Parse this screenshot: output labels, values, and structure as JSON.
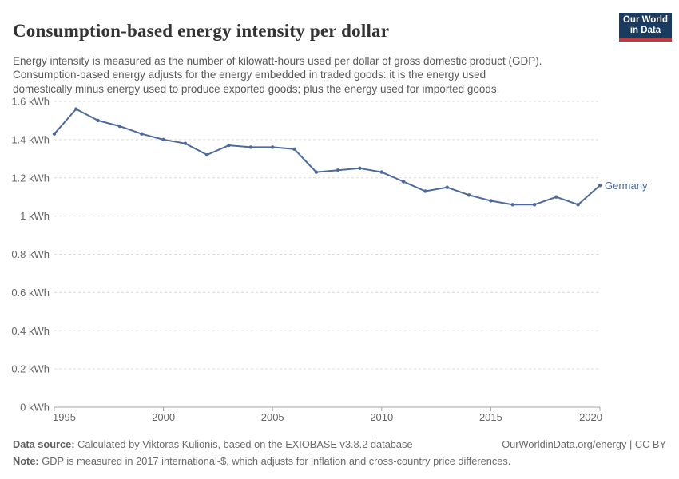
{
  "header": {
    "title": "Consumption-based energy intensity per dollar",
    "subtitle": "Energy intensity is measured as the number of kilowatt-hours used per dollar of gross domestic product (GDP).\nConsumption-based energy adjusts for the energy embedded in traded goods: it is the energy used\ndomestically minus energy used to produce exported goods; plus the energy used for imported goods.",
    "logo_text": "Our World\nin Data"
  },
  "chart_data": {
    "type": "line",
    "title": "Consumption-based energy intensity per dollar",
    "unit": "kWh",
    "x": [
      1995,
      1996,
      1997,
      1998,
      1999,
      2000,
      2001,
      2002,
      2003,
      2004,
      2005,
      2006,
      2007,
      2008,
      2009,
      2010,
      2011,
      2012,
      2013,
      2014,
      2015,
      2016,
      2017,
      2018,
      2019,
      2020
    ],
    "series": [
      {
        "name": "Germany",
        "color": "#4c6a9c",
        "values": [
          1.43,
          1.56,
          1.5,
          1.47,
          1.43,
          1.4,
          1.38,
          1.32,
          1.37,
          1.36,
          1.36,
          1.35,
          1.23,
          1.24,
          1.25,
          1.23,
          1.18,
          1.13,
          1.15,
          1.11,
          1.08,
          1.06,
          1.06,
          1.1,
          1.06,
          1.16
        ]
      }
    ],
    "xlim": [
      1995,
      2020
    ],
    "ylim": [
      0,
      1.6
    ],
    "xticks": [
      1995,
      2000,
      2005,
      2010,
      2015,
      2020
    ],
    "xtick_labels": [
      "1995",
      "2000",
      "2005",
      "2010",
      "2015",
      "2020"
    ],
    "yticks": [
      0,
      0.2,
      0.4,
      0.6,
      0.8,
      1.0,
      1.2,
      1.4,
      1.6
    ],
    "ytick_labels": [
      "0 kWh",
      "0.2 kWh",
      "0.4 kWh",
      "0.6 kWh",
      "0.8 kWh",
      "1 kWh",
      "1.2 kWh",
      "1.4 kWh",
      "1.6 kWh"
    ],
    "grid": "horizontal-dashed",
    "legend_position": "end-of-line-label"
  },
  "footer": {
    "data_source_label": "Data source:",
    "data_source_text": " Calculated by Viktoras Kulionis, based on the EXIOBASE v3.8.2 database",
    "attribution": "OurWorldinData.org/energy | CC BY",
    "note_label": "Note:",
    "note_text": " GDP is measured in 2017 international-$, which adjusts for inflation and cross-country price differences."
  },
  "colors": {
    "brand_navy": "#1a3a5f",
    "brand_red": "#c03a3e",
    "series_blue": "#4c6a9c",
    "gridline": "#dcdcdc",
    "axis": "#a5a5a5",
    "tick_label": "#666666"
  }
}
